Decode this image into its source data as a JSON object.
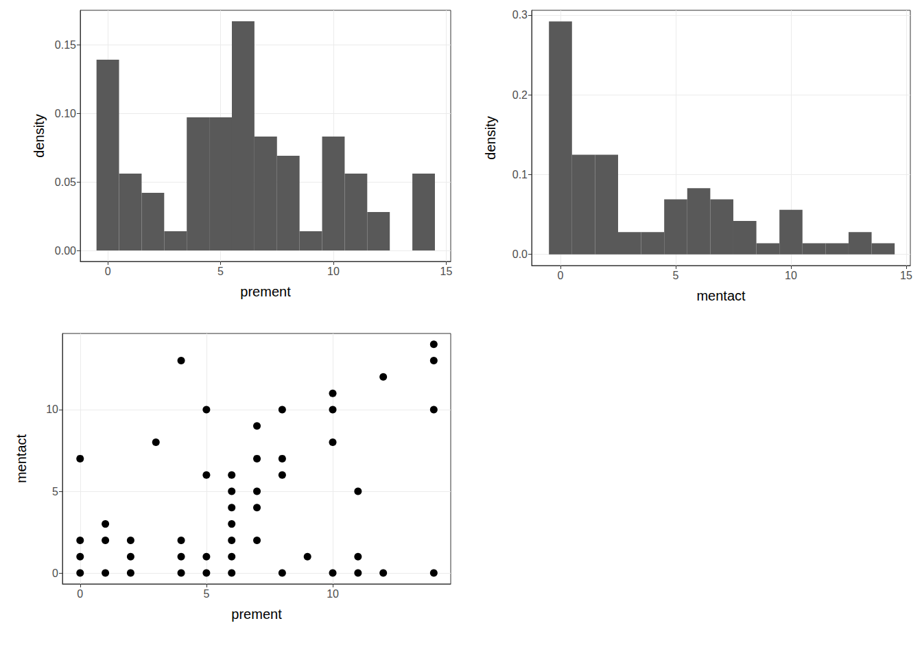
{
  "chart_data": [
    {
      "type": "histogram",
      "x_label": "prement",
      "y_label": "density",
      "bins": [
        -0.5,
        0.5,
        1.5,
        2.5,
        3.5,
        4.5,
        5.5,
        6.5,
        7.5,
        8.5,
        9.5,
        10.5,
        11.5,
        12.5,
        13.5,
        14.5
      ],
      "values": [
        0.139,
        0.056,
        0.042,
        0.014,
        0.097,
        0.097,
        0.167,
        0.083,
        0.069,
        0.014,
        0.083,
        0.056,
        0.028,
        0,
        0.056
      ],
      "color": "#595959",
      "xlim": [
        -1.22,
        15.2
      ],
      "xticks": [
        0,
        5,
        10,
        15
      ],
      "ylim": [
        -0.008,
        0.175
      ],
      "yticks": [
        {
          "value": 0,
          "label": "0.00"
        },
        0.05,
        {
          "value": 0.1,
          "label": "0.10"
        },
        0.15
      ],
      "grid": true
    },
    {
      "type": "histogram",
      "x_label": "mentact",
      "y_label": "density",
      "bins": [
        -0.5,
        0.5,
        1.5,
        2.5,
        3.5,
        4.5,
        5.5,
        6.5,
        7.5,
        8.5,
        9.5,
        10.5,
        11.5,
        12.5,
        13.5,
        14.5
      ],
      "values": [
        0.292,
        0.125,
        0.125,
        0.028,
        0.028,
        0.069,
        0.083,
        0.069,
        0.042,
        0.014,
        0.056,
        0.014,
        0.014,
        0.028,
        0.014
      ],
      "color": "#595959",
      "xlim": [
        -1.25,
        15.18
      ],
      "xticks": [
        0,
        5,
        10,
        15
      ],
      "ylim": [
        -0.014,
        0.306
      ],
      "yticks": [
        {
          "value": 0,
          "label": "0.0"
        },
        0.1,
        0.2,
        0.3
      ],
      "grid": true
    },
    {
      "type": "scatter",
      "x_label": "prement",
      "y_label": "mentact",
      "x": [
        0,
        0,
        0,
        0,
        1,
        1,
        1,
        2,
        2,
        2,
        3,
        4,
        4,
        4,
        4,
        5,
        5,
        5,
        5,
        6,
        6,
        6,
        6,
        6,
        6,
        6,
        7,
        7,
        7,
        7,
        7,
        8,
        8,
        8,
        8,
        9,
        10,
        10,
        10,
        10,
        11,
        11,
        11,
        12,
        12,
        14,
        14,
        14,
        14
      ],
      "values": [
        7,
        2,
        1,
        0,
        3,
        2,
        0,
        2,
        1,
        0,
        8,
        13,
        2,
        1,
        0,
        10,
        6,
        1,
        0,
        6,
        5,
        4,
        3,
        2,
        1,
        0,
        9,
        7,
        5,
        4,
        2,
        10,
        7,
        6,
        0,
        1,
        11,
        10,
        8,
        0,
        5,
        1,
        0,
        12,
        0,
        14,
        13,
        10,
        0
      ],
      "color": "#000000",
      "marker": "circle",
      "xlim": [
        -0.7,
        14.67
      ],
      "xticks": [
        0,
        5,
        10
      ],
      "ylim": [
        -0.67,
        14.66
      ],
      "yticks": [
        0,
        5,
        10
      ],
      "grid": true
    }
  ]
}
